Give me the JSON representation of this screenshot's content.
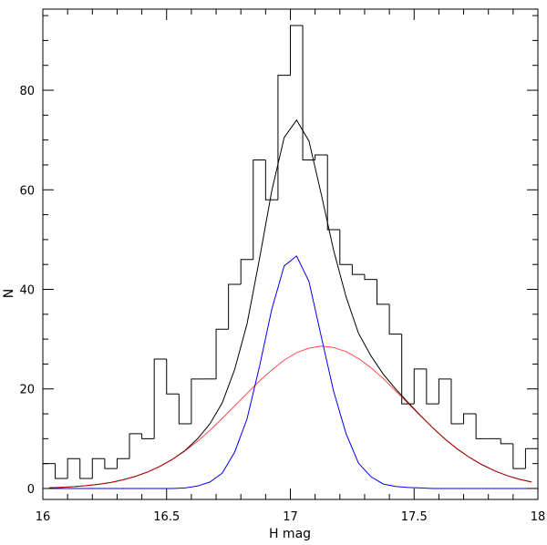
{
  "chart_data": {
    "type": "line",
    "title": "",
    "xlabel": "H mag",
    "ylabel": "N",
    "xlim": [
      16,
      18
    ],
    "ylim": [
      -2.2,
      96.3
    ],
    "grid": false,
    "legend": "none",
    "x_ticks": [
      {
        "value": 16,
        "label": "16"
      },
      {
        "value": 16.5,
        "label": "16.5"
      },
      {
        "value": 17,
        "label": "17"
      },
      {
        "value": 17.5,
        "label": "17.5"
      },
      {
        "value": 18,
        "label": "18"
      }
    ],
    "y_ticks": [
      {
        "value": 0,
        "label": "0"
      },
      {
        "value": 20,
        "label": "20"
      },
      {
        "value": 40,
        "label": "40"
      },
      {
        "value": 60,
        "label": "60"
      },
      {
        "value": 80,
        "label": "80"
      }
    ],
    "x_minor_step": 0.1,
    "y_minor_step": 5,
    "histogram": {
      "type": "step",
      "color": "#000000",
      "bin_start": 16.0,
      "bin_width": 0.05,
      "counts": [
        5,
        2,
        6,
        2,
        6,
        4,
        6,
        11,
        10,
        26,
        19,
        13,
        22,
        22,
        32,
        41,
        46,
        66,
        58,
        83,
        93,
        66,
        67,
        52,
        45,
        43,
        42,
        37,
        31,
        17,
        24,
        17,
        22,
        13,
        15,
        10,
        10,
        9,
        4,
        8
      ]
    },
    "x": [
      16.025,
      16.075,
      16.125,
      16.175,
      16.225,
      16.275,
      16.325,
      16.375,
      16.425,
      16.475,
      16.525,
      16.575,
      16.625,
      16.675,
      16.725,
      16.775,
      16.825,
      16.875,
      16.925,
      16.975,
      17.025,
      17.075,
      17.125,
      17.175,
      17.225,
      17.275,
      17.325,
      17.375,
      17.425,
      17.475,
      17.525,
      17.575,
      17.625,
      17.675,
      17.725,
      17.775,
      17.825,
      17.875,
      17.925,
      17.975
    ],
    "series": [
      {
        "color": "#ff0000",
        "values": [
          0.15,
          0.23,
          0.37,
          0.56,
          0.84,
          1.2,
          1.75,
          2.45,
          3.35,
          4.5,
          5.9,
          7.55,
          9.5,
          11.7,
          14.1,
          16.6,
          19.1,
          21.6,
          23.8,
          25.8,
          27.3,
          28.2,
          28.6,
          28.3,
          27.5,
          26.1,
          24.3,
          22.1,
          19.6,
          17.1,
          14.6,
          12.2,
          9.9,
          7.9,
          6.2,
          4.75,
          3.55,
          2.6,
          1.85,
          1.3
        ]
      },
      {
        "color": "#0000ff",
        "values": [
          0,
          0,
          0,
          0,
          0,
          0,
          0,
          0,
          0,
          0,
          0,
          0.1,
          0.5,
          1.3,
          3.1,
          7.3,
          14.0,
          24.5,
          36.0,
          44.7,
          46.7,
          41.6,
          30.5,
          19.5,
          11.0,
          5.1,
          2.4,
          0.9,
          0.4,
          0.2,
          0.1,
          0,
          0,
          0,
          0,
          0,
          0,
          0,
          0,
          0
        ]
      },
      {
        "color": "#000000",
        "values": [
          0.15,
          0.23,
          0.37,
          0.56,
          0.84,
          1.2,
          1.75,
          2.45,
          3.35,
          4.5,
          5.9,
          7.65,
          10.0,
          13.0,
          17.2,
          23.9,
          33.1,
          46.1,
          59.8,
          70.5,
          74.0,
          69.8,
          59.1,
          47.8,
          38.5,
          31.2,
          26.7,
          23.0,
          20.0,
          17.3,
          14.7,
          12.2,
          9.9,
          7.9,
          6.2,
          4.75,
          3.55,
          2.6,
          1.85,
          1.3
        ]
      }
    ]
  }
}
